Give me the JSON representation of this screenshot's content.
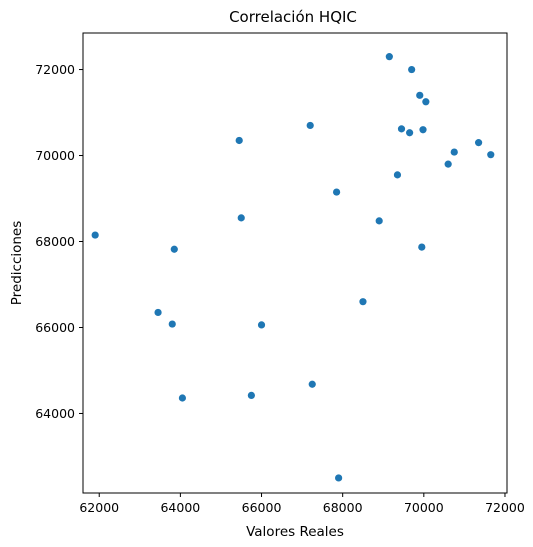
{
  "chart_data": {
    "type": "scatter",
    "title": "Correlación HQIC",
    "xlabel": "Valores Reales",
    "ylabel": "Predicciones",
    "xlim": [
      61600,
      72050
    ],
    "ylim": [
      62150,
      72850
    ],
    "xticks": [
      62000,
      64000,
      66000,
      68000,
      70000,
      72000
    ],
    "yticks": [
      64000,
      66000,
      68000,
      70000,
      72000
    ],
    "grid": false,
    "point_color": "#1f77b4",
    "points": [
      {
        "x": 69150,
        "y": 72300
      },
      {
        "x": 69700,
        "y": 72000
      },
      {
        "x": 69900,
        "y": 71400
      },
      {
        "x": 70050,
        "y": 71250
      },
      {
        "x": 67200,
        "y": 70700
      },
      {
        "x": 69450,
        "y": 70620
      },
      {
        "x": 69650,
        "y": 70530
      },
      {
        "x": 69980,
        "y": 70600
      },
      {
        "x": 65450,
        "y": 70350
      },
      {
        "x": 71350,
        "y": 70300
      },
      {
        "x": 70750,
        "y": 70080
      },
      {
        "x": 71650,
        "y": 70020
      },
      {
        "x": 70600,
        "y": 69800
      },
      {
        "x": 69350,
        "y": 69550
      },
      {
        "x": 67850,
        "y": 69150
      },
      {
        "x": 65500,
        "y": 68550
      },
      {
        "x": 68900,
        "y": 68480
      },
      {
        "x": 61900,
        "y": 68150
      },
      {
        "x": 63850,
        "y": 67820
      },
      {
        "x": 69950,
        "y": 67870
      },
      {
        "x": 68500,
        "y": 66600
      },
      {
        "x": 63450,
        "y": 66350
      },
      {
        "x": 63800,
        "y": 66080
      },
      {
        "x": 66000,
        "y": 66060
      },
      {
        "x": 67250,
        "y": 64680
      },
      {
        "x": 65750,
        "y": 64420
      },
      {
        "x": 64050,
        "y": 64360
      },
      {
        "x": 67900,
        "y": 62500
      }
    ]
  }
}
